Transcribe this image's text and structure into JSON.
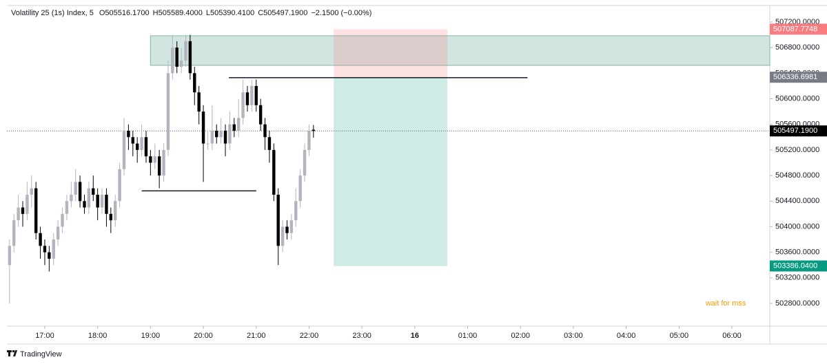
{
  "chart_data": {
    "type": "candlestick",
    "title": "Volatility 25 (1s) Index, 5",
    "header": [
      {
        "key": "O",
        "value": "505516.1700"
      },
      {
        "key": "H",
        "value": "505589.4000"
      },
      {
        "key": "L",
        "value": "505390.4100"
      },
      {
        "key": "C",
        "value": "505497.1900"
      }
    ],
    "change": "−2.1500 (−0.00%)",
    "up_color": "#b2b5be",
    "down_color": "#000000",
    "x": [
      "16:20",
      "16:25",
      "16:30",
      "16:35",
      "16:40",
      "16:45",
      "16:50",
      "16:55",
      "17:00",
      "17:05",
      "17:10",
      "17:15",
      "17:20",
      "17:25",
      "17:30",
      "17:35",
      "17:40",
      "17:45",
      "17:50",
      "17:55",
      "18:00",
      "18:05",
      "18:10",
      "18:15",
      "18:20",
      "18:25",
      "18:30",
      "18:35",
      "18:40",
      "18:45",
      "18:50",
      "18:55",
      "19:00",
      "19:05",
      "19:10",
      "19:15",
      "19:20",
      "19:25",
      "19:30",
      "19:35",
      "19:40",
      "19:45",
      "19:50",
      "19:55",
      "20:00",
      "20:05",
      "20:10",
      "20:15",
      "20:20",
      "20:25",
      "20:30",
      "20:35",
      "20:40",
      "20:45",
      "20:50",
      "20:55",
      "21:00",
      "21:05",
      "21:10",
      "21:15",
      "21:20",
      "21:25",
      "21:30",
      "21:35",
      "21:40",
      "21:45",
      "21:50",
      "21:55",
      "22:00",
      "22:05"
    ],
    "open": [
      503400,
      503700,
      504100,
      504300,
      504200,
      504500,
      504600,
      503900,
      503700,
      503600,
      503500,
      503800,
      504000,
      504200,
      504400,
      504500,
      504700,
      504400,
      504300,
      504600,
      504500,
      504300,
      504500,
      504200,
      504100,
      504400,
      504900,
      505500,
      505400,
      505300,
      505200,
      505400,
      505100,
      505000,
      505100,
      504800,
      505200,
      506400,
      506800,
      506500,
      506600,
      506900,
      506400,
      506100,
      505800,
      505300,
      505300,
      505500,
      505400,
      505500,
      505300,
      505600,
      505500,
      505700,
      506100,
      505900,
      506200,
      505900,
      505600,
      505400,
      505200,
      504500,
      503700,
      504000,
      503900,
      504100,
      504400,
      504800,
      505200,
      505516.17
    ],
    "high": [
      503800,
      504200,
      504500,
      504400,
      504700,
      504800,
      504700,
      504000,
      503800,
      503700,
      503900,
      504100,
      504300,
      504500,
      504700,
      504900,
      504800,
      504500,
      504700,
      504800,
      504600,
      504600,
      504600,
      504300,
      504500,
      505000,
      505700,
      505600,
      505500,
      505400,
      505600,
      505500,
      505200,
      505300,
      505200,
      505300,
      506600,
      507000,
      506900,
      506800,
      507000,
      507000,
      506500,
      506200,
      505900,
      505500,
      505900,
      505600,
      505700,
      505600,
      505800,
      505700,
      506000,
      506300,
      506200,
      506300,
      506300,
      506000,
      505700,
      505500,
      505300,
      504600,
      504100,
      504100,
      504200,
      504600,
      504900,
      505300,
      505600,
      505589.4
    ],
    "low": [
      502800,
      503600,
      504000,
      504000,
      504100,
      504300,
      503800,
      503500,
      503400,
      503300,
      503400,
      503700,
      503900,
      504100,
      504300,
      504400,
      504300,
      504200,
      504200,
      504400,
      504100,
      504200,
      504000,
      503900,
      504000,
      504300,
      504800,
      505200,
      505100,
      505000,
      505100,
      505000,
      504800,
      504900,
      504600,
      504700,
      505100,
      506300,
      506400,
      506400,
      506500,
      506300,
      505900,
      505600,
      504700,
      505200,
      505200,
      505300,
      505300,
      505100,
      505200,
      505400,
      505400,
      505600,
      505800,
      505800,
      505800,
      505500,
      505200,
      505000,
      504400,
      503400,
      503600,
      503800,
      503800,
      504000,
      504300,
      504700,
      505100,
      505390.41
    ],
    "close": [
      503700,
      504100,
      504300,
      504200,
      504500,
      504600,
      503900,
      503700,
      503600,
      503500,
      503800,
      504000,
      504200,
      504400,
      504500,
      504700,
      504400,
      504300,
      504600,
      504500,
      504300,
      504500,
      504200,
      504100,
      504400,
      504900,
      505500,
      505400,
      505300,
      505200,
      505400,
      505100,
      505000,
      505100,
      504800,
      505200,
      506400,
      506800,
      506500,
      506600,
      506900,
      506400,
      506100,
      505800,
      505300,
      505300,
      505500,
      505400,
      505500,
      505300,
      505600,
      505500,
      505700,
      506100,
      505900,
      506200,
      505900,
      505600,
      505400,
      505200,
      504500,
      503700,
      504000,
      503900,
      504100,
      504400,
      504800,
      505200,
      505500,
      505497.19
    ],
    "xlim": [
      "16:17",
      "06:43"
    ],
    "xticks": [
      "17:00",
      "18:00",
      "19:00",
      "20:00",
      "21:00",
      "22:00",
      "23:00",
      {
        "value": "00:00",
        "label": "16"
      },
      "01:00",
      "02:00",
      "03:00",
      "04:00",
      "05:00",
      "06:00"
    ],
    "ylim": [
      502445,
      507458
    ],
    "yticks": [
      {
        "value": 507200,
        "label": "507200.0000"
      },
      {
        "value": 506800,
        "label": "506800.0000"
      },
      {
        "value": 506400,
        "label": "506400.0000"
      },
      {
        "value": 506000,
        "label": "506000.0000"
      },
      {
        "value": 505600,
        "label": "505600.0000"
      },
      {
        "value": 505200,
        "label": "505200.0000"
      },
      {
        "value": 504800,
        "label": "504800.0000"
      },
      {
        "value": 504400,
        "label": "504400.0000"
      },
      {
        "value": 504000,
        "label": "504000.0000"
      },
      {
        "value": 503600,
        "label": "503600.0000"
      },
      {
        "value": 503200,
        "label": "503200.0000"
      },
      {
        "value": 502800,
        "label": "502800.0000"
      }
    ],
    "zone": {
      "start": "19:00",
      "top": 506985,
      "bottom": 506522
    },
    "position": {
      "start": "22:28",
      "end": "00:37",
      "stop": {
        "value": 507087.7748,
        "label": "507087.7748"
      },
      "entry": {
        "value": 506336.6981,
        "label": "506336.6981"
      },
      "target": {
        "value": 503386.04,
        "label": "503386.0400"
      }
    },
    "levels": [
      {
        "start": "20:29",
        "end": "02:08",
        "value": 506330
      },
      {
        "start": "18:50",
        "end": "21:00",
        "value": 504560
      }
    ],
    "last_price": {
      "value": 505497.19,
      "label": "505497.1900"
    },
    "annotation": {
      "text": "wait for mss",
      "x": "05:53",
      "y": 502800,
      "color": "#ff9800"
    }
  },
  "footer": {
    "brand": "TradingView"
  }
}
